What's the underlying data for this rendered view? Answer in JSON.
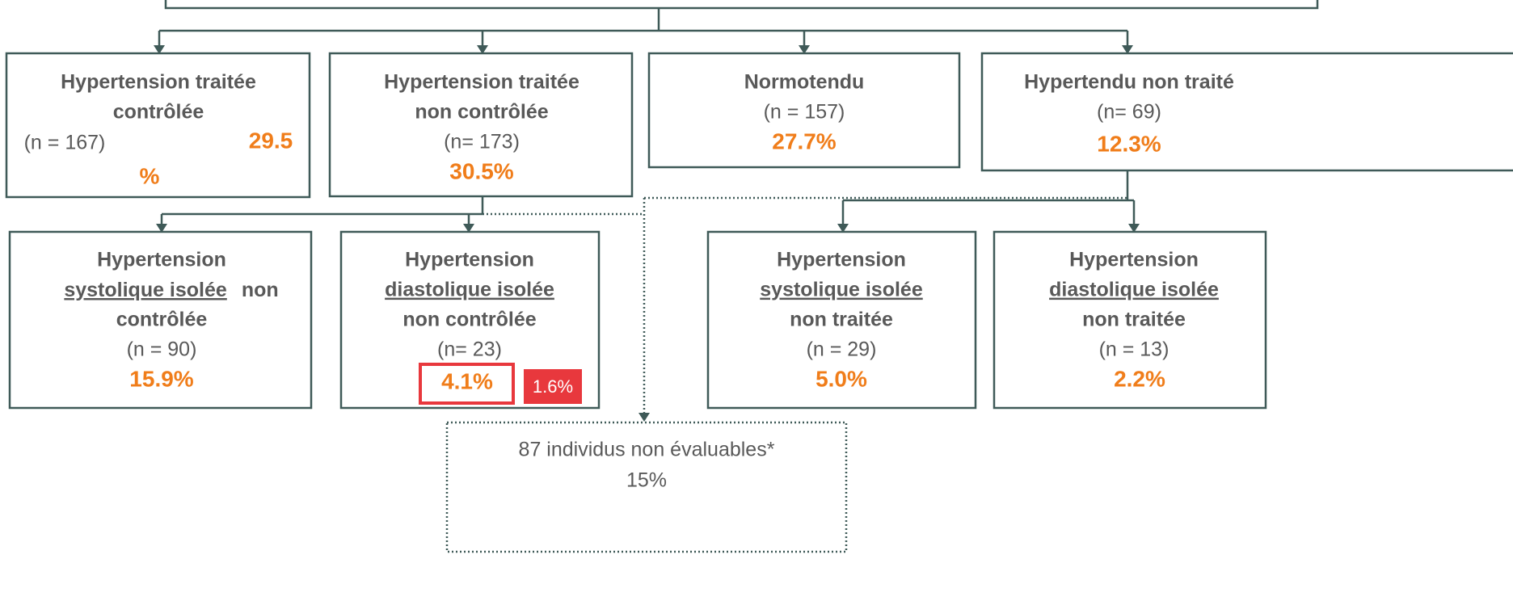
{
  "nodes": [
    {
      "title": [
        "Hypertension traitée",
        "contrôlée"
      ],
      "count": "(n = 167)",
      "percent": [
        "29.5",
        "%"
      ]
    },
    {
      "title": [
        "Hypertension traitée",
        "non contrôlée"
      ],
      "count": "(n= 173)",
      "percent": [
        "30.5%"
      ]
    },
    {
      "title": [
        "Normotendu"
      ],
      "count": "(n = 157)",
      "percent": [
        "27.7%"
      ]
    },
    {
      "title": [
        "Hypertendu non traité"
      ],
      "count": "(n= 69)",
      "percent": [
        "12.3%"
      ]
    },
    {
      "title": [
        "Hypertension",
        "systolique isolée",
        "non",
        "contrôlée"
      ],
      "count": "(n = 90)",
      "percent": [
        "15.9%"
      ]
    },
    {
      "title": [
        "Hypertension",
        "diastolique isolée",
        "non contrôlée"
      ],
      "count": "(n= 23)",
      "percent": [
        "4.1%"
      ],
      "note": "1.6%"
    },
    {
      "title": [
        "Hypertension",
        "systolique isolée",
        "non traitée"
      ],
      "count": "(n = 29)",
      "percent": [
        "5.0%"
      ]
    },
    {
      "title": [
        "Hypertension",
        "diastolique isolée",
        "non traitée"
      ],
      "count": "(n = 13)",
      "percent": [
        "2.2%"
      ]
    }
  ],
  "unevaluated": {
    "label": "87 individus non évaluables*",
    "percent": "15%"
  }
}
